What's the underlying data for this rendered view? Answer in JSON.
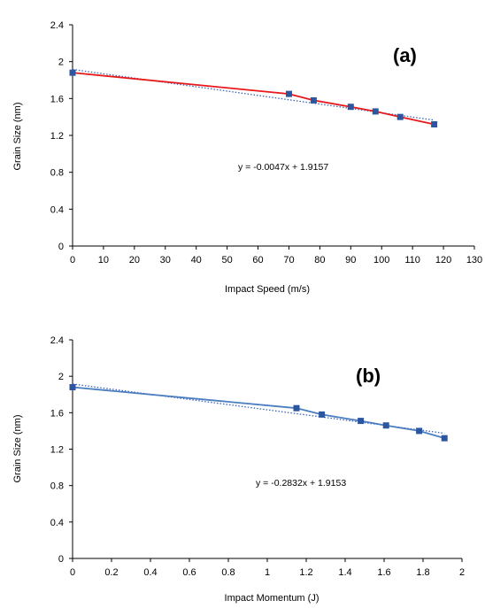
{
  "colors": {
    "a_line": "#e8191b",
    "b_line": "#4a7ec0",
    "marker": "#2d56a0",
    "trend": "#3a63b8",
    "axis": "#000000"
  },
  "chart_data": [
    {
      "type": "line",
      "panel_label": "(a)",
      "xlabel": "Impact Speed (m/s)",
      "ylabel": "Grain Size (nm)",
      "xlim": [
        0,
        130
      ],
      "ylim": [
        0,
        2.4
      ],
      "xticks": [
        0,
        10,
        20,
        30,
        40,
        50,
        60,
        70,
        80,
        90,
        100,
        110,
        120,
        130
      ],
      "xtick_labels": [
        "0",
        "10",
        "20",
        "30",
        "40",
        "50",
        "60",
        "70",
        "80",
        "90",
        "100",
        "110",
        "120",
        "130"
      ],
      "yticks": [
        0,
        0.4,
        0.8,
        1.2,
        1.6,
        2,
        2.4
      ],
      "ytick_labels": [
        "0",
        "0.4",
        "0.8",
        "1.2",
        "1.6",
        "2",
        "2.4"
      ],
      "x": [
        0,
        70,
        78,
        90,
        98,
        106,
        117
      ],
      "y": [
        1.88,
        1.65,
        1.58,
        1.51,
        1.46,
        1.4,
        1.32
      ],
      "trendline": {
        "slope": -0.0047,
        "intercept": 1.9157,
        "x_range": [
          0,
          117
        ]
      },
      "equation": "y = -0.0047x + 1.9157",
      "grid": false
    },
    {
      "type": "line",
      "panel_label": "(b)",
      "xlabel": "Impact Momentum (J)",
      "ylabel": "Grain Size (nm)",
      "xlim": [
        0,
        2
      ],
      "ylim": [
        0,
        2.4
      ],
      "xticks": [
        0,
        0.2,
        0.4,
        0.6,
        0.8,
        1,
        1.2,
        1.4,
        1.6,
        1.8,
        2
      ],
      "xtick_labels": [
        "0",
        "0.2",
        "0.4",
        "0.6",
        "0.8",
        "1",
        "1.2",
        "1.4",
        "1.6",
        "1.8",
        "2"
      ],
      "yticks": [
        0,
        0.4,
        0.8,
        1.2,
        1.6,
        2,
        2.4
      ],
      "ytick_labels": [
        "0",
        "0.4",
        "0.8",
        "1.2",
        "1.6",
        "2",
        "2.4"
      ],
      "x": [
        0,
        1.15,
        1.28,
        1.48,
        1.61,
        1.78,
        1.91
      ],
      "y": [
        1.88,
        1.65,
        1.58,
        1.51,
        1.46,
        1.4,
        1.32
      ],
      "trendline": {
        "slope": -0.2832,
        "intercept": 1.9153,
        "x_range": [
          0,
          1.91
        ]
      },
      "equation": "y = -0.2832x + 1.9153",
      "grid": false
    }
  ]
}
